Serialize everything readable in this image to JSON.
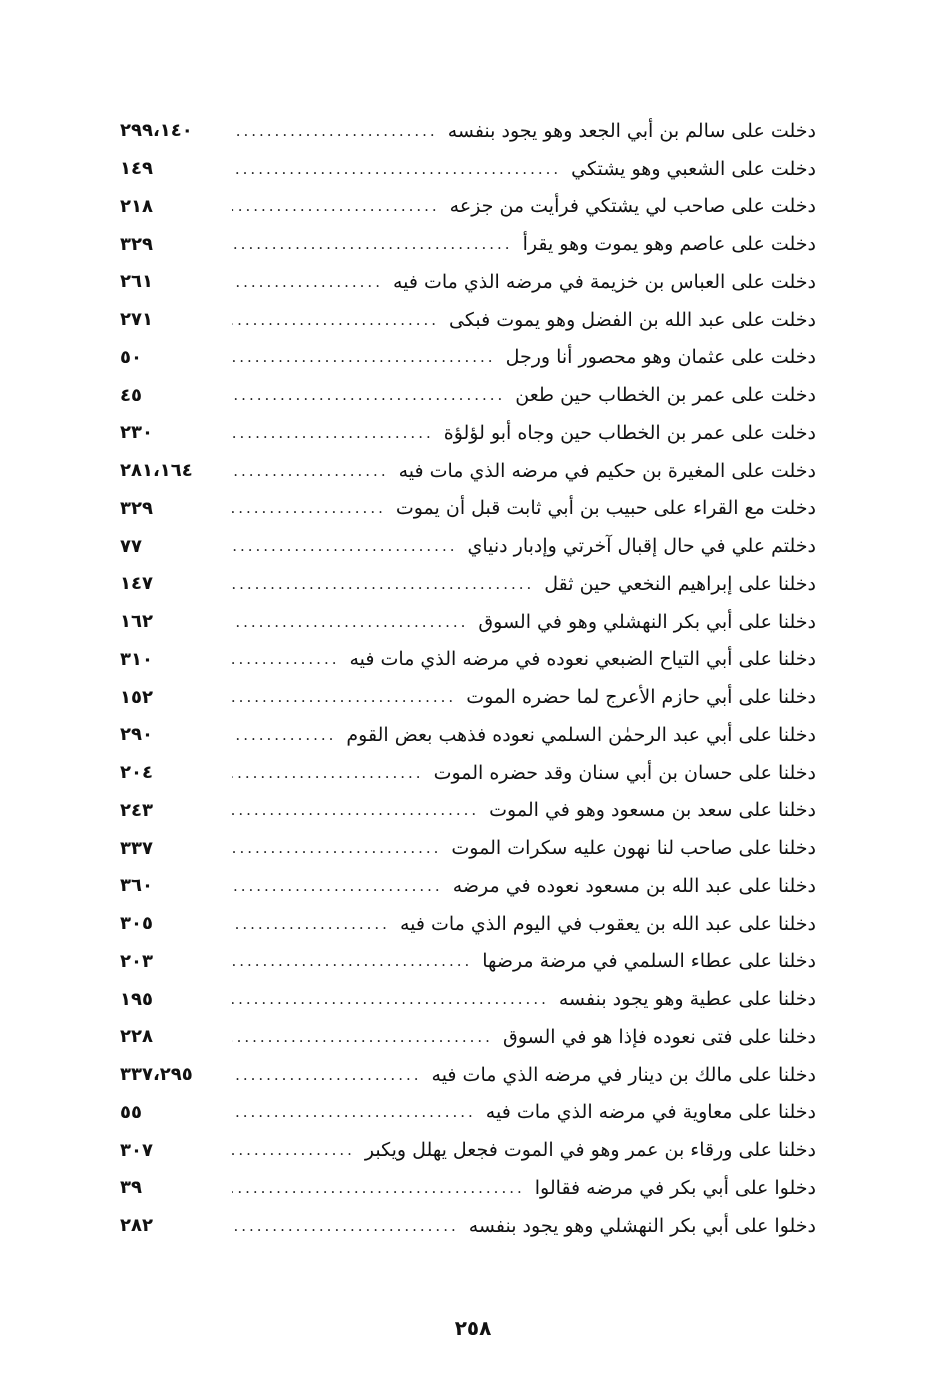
{
  "entries": [
    {
      "text": "دخلت على سالم بن أبي الجعد وهو يجود بنفسه",
      "pages": "٢٩٩،١٤٠"
    },
    {
      "text": "دخلت على الشعبي وهو يشتكي",
      "pages": "١٤٩"
    },
    {
      "text": "دخلت على صاحب لي يشتكي فرأيت من جزعه",
      "pages": "٢١٨"
    },
    {
      "text": "دخلت على عاصم وهو يموت وهو يقرأ",
      "pages": "٣٢٩"
    },
    {
      "text": "دخلت على العباس بن خزيمة في مرضه الذي مات فيه",
      "pages": "٢٦١"
    },
    {
      "text": "دخلت على عبد الله بن الفضل وهو يموت فبكى",
      "pages": "٢٧١"
    },
    {
      "text": "دخلت على عثمان وهو محصور أنا ورجل",
      "pages": "٥٠"
    },
    {
      "text": "دخلت على عمر بن الخطاب حين طعن",
      "pages": "٤٥"
    },
    {
      "text": "دخلت على عمر بن الخطاب حين وجاه أبو لؤلؤة",
      "pages": "٢٣٠"
    },
    {
      "text": "دخلت على المغيرة بن حكيم في مرضه الذي مات فيه",
      "pages": "٢٨١،١٦٤"
    },
    {
      "text": "دخلت مع القراء على حبيب بن أبي ثابت قبل أن يموت",
      "pages": "٣٢٩"
    },
    {
      "text": "دخلتم علي في حال إقبال آخرتي وإدبار دنياي",
      "pages": "٧٧"
    },
    {
      "text": "دخلنا على إبراهيم النخعي حين ثقل",
      "pages": "١٤٧"
    },
    {
      "text": "دخلنا على أبي بكر النهشلي وهو في السوق",
      "pages": "١٦٢"
    },
    {
      "text": "دخلنا على أبي التياح الضبعي نعوده في مرضه الذي مات فيه",
      "pages": "٣١٠"
    },
    {
      "text": "دخلنا على أبي حازم الأعرج لما حضره الموت",
      "pages": "١٥٢"
    },
    {
      "text": "دخلنا على أبي عبد الرحمٰن السلمي نعوده فذهب بعض القوم",
      "pages": "٢٩٠"
    },
    {
      "text": "دخلنا على حسان بن أبي سنان وقد حضره الموت",
      "pages": "٢٠٤"
    },
    {
      "text": "دخلنا على سعد بن مسعود وهو في الموت",
      "pages": "٢٤٣"
    },
    {
      "text": "دخلنا على صاحب لنا نهون عليه سكرات الموت",
      "pages": "٣٣٧"
    },
    {
      "text": "دخلنا على عبد الله بن مسعود نعوده في مرضه",
      "pages": "٣٦٠"
    },
    {
      "text": "دخلنا على عبد الله بن يعقوب في اليوم الذي مات فيه",
      "pages": "٣٠٥"
    },
    {
      "text": "دخلنا على عطاء السلمي في مرضة مرضها",
      "pages": "٢٠٣"
    },
    {
      "text": "دخلنا على عطية وهو يجود بنفسه",
      "pages": "١٩٥"
    },
    {
      "text": "دخلنا على فتى نعوده فإذا هو في السوق",
      "pages": "٢٢٨"
    },
    {
      "text": "دخلنا على مالك بن دينار في مرضه الذي مات فيه",
      "pages": "٣٣٧،٢٩٥"
    },
    {
      "text": "دخلنا على معاوية في مرضه الذي مات فيه",
      "pages": "٥٥"
    },
    {
      "text": "دخلنا على ورقاء بن عمر وهو في الموت فجعل يهلل ويكبر",
      "pages": "٣٠٧"
    },
    {
      "text": "دخلوا على أبي بكر في مرضه فقالوا",
      "pages": "٣٩"
    },
    {
      "text": "دخلوا على أبي بكر النهشلي وهو يجود بنفسه",
      "pages": "٢٨٢"
    }
  ],
  "page_number": "٢٥٨"
}
